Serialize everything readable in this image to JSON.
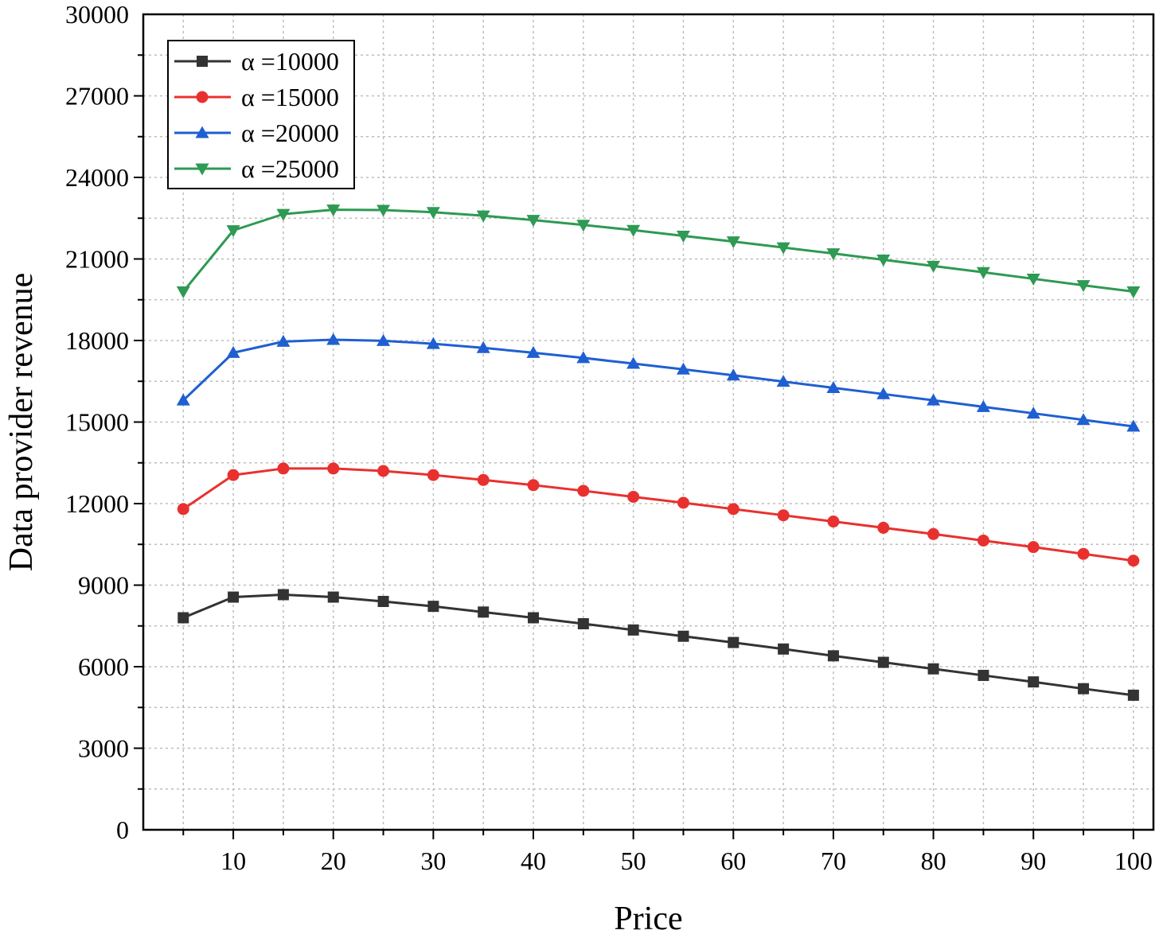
{
  "chart_data": {
    "type": "line",
    "title": "",
    "xlabel": "Price",
    "ylabel": "Data provider revenue",
    "xlim": [
      1,
      102
    ],
    "ylim": [
      0,
      30000
    ],
    "x_ticks": [
      10,
      20,
      30,
      40,
      50,
      60,
      70,
      80,
      90,
      100
    ],
    "x_tick_labels": [
      "10",
      "20",
      "30",
      "40",
      "50",
      "60",
      "70",
      "80",
      "90",
      "100"
    ],
    "y_ticks": [
      0,
      3000,
      6000,
      9000,
      12000,
      15000,
      18000,
      21000,
      24000,
      27000,
      30000
    ],
    "y_tick_labels": [
      "0",
      "3000",
      "6000",
      "9000",
      "12000",
      "15000",
      "18000",
      "21000",
      "24000",
      "27000",
      "30000"
    ],
    "grid": true,
    "legend_position": "top-left",
    "x": [
      5,
      10,
      15,
      20,
      25,
      30,
      35,
      40,
      45,
      50,
      55,
      60,
      65,
      70,
      75,
      80,
      85,
      90,
      95,
      100
    ],
    "series": [
      {
        "name": "α =10000",
        "color": "#333333",
        "marker": "square",
        "values": [
          7800,
          8560,
          8650,
          8560,
          8400,
          8220,
          8010,
          7800,
          7580,
          7350,
          7120,
          6890,
          6650,
          6400,
          6160,
          5920,
          5680,
          5440,
          5190,
          4950
        ]
      },
      {
        "name": "α =15000",
        "color": "#e8312f",
        "marker": "circle",
        "values": [
          11800,
          13050,
          13290,
          13290,
          13200,
          13050,
          12870,
          12680,
          12470,
          12250,
          12030,
          11800,
          11570,
          11340,
          11110,
          10880,
          10640,
          10400,
          10150,
          9900
        ]
      },
      {
        "name": "α =20000",
        "color": "#1f5fd1",
        "marker": "triangle-up",
        "values": [
          15800,
          17550,
          17960,
          18030,
          17990,
          17880,
          17730,
          17550,
          17360,
          17150,
          16940,
          16720,
          16490,
          16260,
          16030,
          15800,
          15560,
          15320,
          15080,
          14840
        ]
      },
      {
        "name": "α =25000",
        "color": "#2e9a53",
        "marker": "triangle-down",
        "values": [
          19800,
          22050,
          22650,
          22810,
          22800,
          22720,
          22590,
          22430,
          22250,
          22060,
          21850,
          21640,
          21420,
          21200,
          20970,
          20740,
          20510,
          20270,
          20030,
          19800
        ]
      }
    ]
  }
}
